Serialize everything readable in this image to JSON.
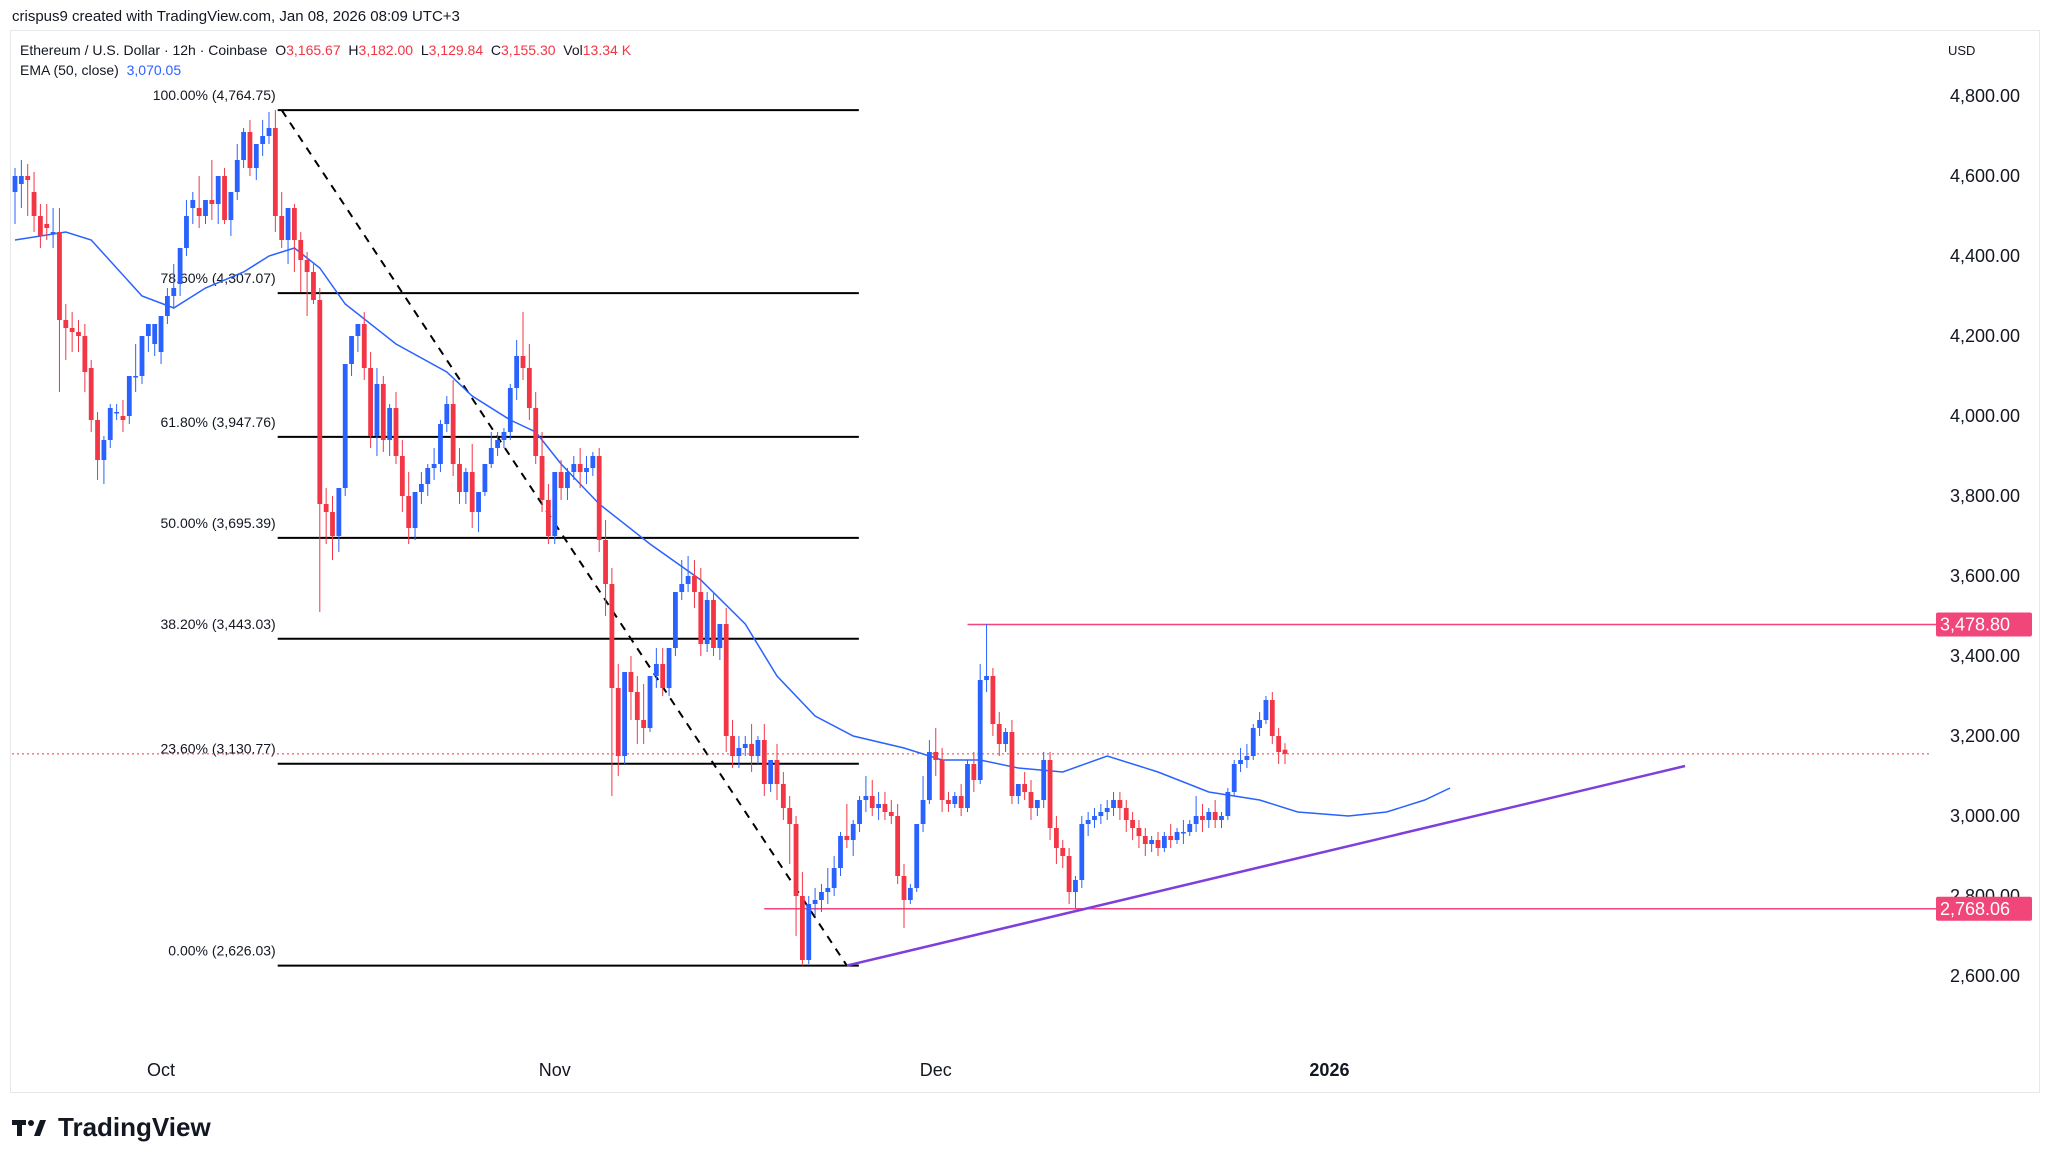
{
  "header": {
    "credit": "crispus9 created with TradingView.com, Jan 08, 2026 08:09 UTC+3",
    "symbol": "Ethereum / U.S. Dollar · 12h · Coinbase",
    "o_label": "O",
    "o_value": "3,165.67",
    "h_label": "H",
    "h_value": "3,182.00",
    "l_label": "L",
    "l_value": "3,129.84",
    "c_label": "C",
    "c_value": "3,155.30",
    "vol_label": "Vol",
    "vol_value": "13.34 K",
    "ema_label": "EMA (50, close)",
    "ema_value": "3,070.05",
    "currency": "USD"
  },
  "footer": {
    "brand": "TradingView"
  },
  "colors": {
    "up": "#2962ff",
    "down": "#f23645",
    "ema": "#2962ff",
    "trendline": "#7e3fdc",
    "level": "#f0467a",
    "fib": "#000000"
  },
  "chart_data": {
    "type": "candlestick",
    "title": "",
    "ylim": [
      2480,
      4900
    ],
    "y_ticks": [
      "2,600.00",
      "2,800.00",
      "3,000.00",
      "3,200.00",
      "3,400.00",
      "3,600.00",
      "3,800.00",
      "4,000.00",
      "4,200.00",
      "4,400.00",
      "4,600.00",
      "4,800.00"
    ],
    "y_tick_values": [
      2600,
      2800,
      3000,
      3200,
      3400,
      3600,
      3800,
      4000,
      4200,
      4400,
      4600,
      4800
    ],
    "x_ticks": [
      {
        "label": "Oct",
        "bar": 23,
        "bold": false
      },
      {
        "label": "Nov",
        "bar": 85,
        "bold": false
      },
      {
        "label": "Dec",
        "bar": 145,
        "bold": false
      },
      {
        "label": "2026",
        "bar": 207,
        "bold": true
      }
    ],
    "last_price": 3155.3,
    "fibonacci": {
      "start_bar": 42,
      "end_bar": 131,
      "high": 4764.75,
      "low": 2626.03,
      "levels": [
        {
          "label": "100.00% (4,764.75)",
          "value": 4764.75
        },
        {
          "label": "78.60% (4,307.07)",
          "value": 4307.07
        },
        {
          "label": "61.80% (3,947.76)",
          "value": 3947.76
        },
        {
          "label": "50.00% (3,695.39)",
          "value": 3695.39
        },
        {
          "label": "38.20% (3,443.03)",
          "value": 3443.03
        },
        {
          "label": "23.60% (3,130.77)",
          "value": 3130.77
        },
        {
          "label": "0.00% (2,626.03)",
          "value": 2626.03
        }
      ]
    },
    "horizontal_levels": [
      {
        "label": "3,478.80",
        "value": 3478.8,
        "from_bar": 150
      },
      {
        "label": "2,768.06",
        "value": 2768.06,
        "from_bar": 118
      }
    ],
    "trendline": {
      "bar1": 131,
      "value1": 2626.03,
      "bar2": 263,
      "value2": 3125
    },
    "ema_points": [
      [
        0,
        4440
      ],
      [
        8,
        4460
      ],
      [
        12,
        4440
      ],
      [
        20,
        4300
      ],
      [
        25,
        4270
      ],
      [
        30,
        4320
      ],
      [
        36,
        4360
      ],
      [
        40,
        4400
      ],
      [
        44,
        4420
      ],
      [
        48,
        4370
      ],
      [
        52,
        4280
      ],
      [
        60,
        4180
      ],
      [
        68,
        4110
      ],
      [
        72,
        4050
      ],
      [
        78,
        3990
      ],
      [
        82,
        3960
      ],
      [
        86,
        3880
      ],
      [
        92,
        3780
      ],
      [
        100,
        3680
      ],
      [
        108,
        3590
      ],
      [
        115,
        3480
      ],
      [
        120,
        3350
      ],
      [
        126,
        3250
      ],
      [
        132,
        3200
      ],
      [
        140,
        3170
      ],
      [
        146,
        3140
      ],
      [
        152,
        3140
      ],
      [
        158,
        3120
      ],
      [
        165,
        3110
      ],
      [
        172,
        3150
      ],
      [
        180,
        3110
      ],
      [
        188,
        3060
      ],
      [
        196,
        3040
      ],
      [
        202,
        3010
      ],
      [
        210,
        3000
      ],
      [
        216,
        3010
      ],
      [
        222,
        3040
      ],
      [
        226,
        3070
      ]
    ],
    "candles": [
      [
        4560,
        4620,
        4600,
        4480
      ],
      [
        4580,
        4640,
        4600,
        4520
      ],
      [
        4600,
        4630,
        4590,
        4500
      ],
      [
        4560,
        4610,
        4500,
        4460
      ],
      [
        4500,
        4530,
        4450,
        4420
      ],
      [
        4480,
        4530,
        4470,
        4440
      ],
      [
        4460,
        4520,
        4460,
        4420
      ],
      [
        4460,
        4520,
        4240,
        4060
      ],
      [
        4240,
        4280,
        4220,
        4140
      ],
      [
        4220,
        4260,
        4210,
        4160
      ],
      [
        4210,
        4240,
        4200,
        4160
      ],
      [
        4200,
        4230,
        4110,
        4060
      ],
      [
        4120,
        4140,
        3990,
        3960
      ],
      [
        3990,
        4010,
        3890,
        3840
      ],
      [
        3890,
        3950,
        3940,
        3830
      ],
      [
        3940,
        4030,
        4020,
        3920
      ],
      [
        4010,
        4030,
        4010,
        3990
      ],
      [
        4000,
        4040,
        3990,
        3960
      ],
      [
        4000,
        4080,
        4100,
        3980
      ],
      [
        4100,
        4180,
        4100,
        4060
      ],
      [
        4100,
        4120,
        4200,
        4080
      ],
      [
        4200,
        4220,
        4230,
        4160
      ],
      [
        4180,
        4220,
        4230,
        4150
      ],
      [
        4160,
        4200,
        4250,
        4130
      ],
      [
        4250,
        4320,
        4300,
        4230
      ],
      [
        4300,
        4380,
        4320,
        4270
      ],
      [
        4330,
        4400,
        4420,
        4300
      ],
      [
        4420,
        4540,
        4500,
        4400
      ],
      [
        4520,
        4560,
        4540,
        4480
      ],
      [
        4520,
        4600,
        4500,
        4470
      ],
      [
        4500,
        4540,
        4540,
        4480
      ],
      [
        4540,
        4640,
        4530,
        4490
      ],
      [
        4530,
        4600,
        4600,
        4480
      ],
      [
        4600,
        4620,
        4490,
        4480
      ],
      [
        4490,
        4560,
        4560,
        4450
      ],
      [
        4560,
        4680,
        4640,
        4540
      ],
      [
        4640,
        4720,
        4710,
        4620
      ],
      [
        4710,
        4740,
        4620,
        4600
      ],
      [
        4620,
        4680,
        4680,
        4590
      ],
      [
        4680,
        4740,
        4700,
        4650
      ],
      [
        4700,
        4760,
        4720,
        4680
      ],
      [
        4720,
        4765,
        4500,
        4460
      ],
      [
        4500,
        4560,
        4440,
        4420
      ],
      [
        4440,
        4520,
        4520,
        4380
      ],
      [
        4520,
        4530,
        4440,
        4360
      ],
      [
        4440,
        4460,
        4390,
        4310
      ],
      [
        4390,
        4410,
        4360,
        4250
      ],
      [
        4360,
        4380,
        4290,
        4280
      ],
      [
        4290,
        4320,
        3780,
        3510
      ],
      [
        3780,
        3820,
        3760,
        3680
      ],
      [
        3760,
        3800,
        3700,
        3640
      ],
      [
        3700,
        3800,
        3820,
        3660
      ],
      [
        3820,
        3980,
        4130,
        3800
      ],
      [
        4130,
        4180,
        4200,
        4100
      ],
      [
        4200,
        4220,
        4230,
        4160
      ],
      [
        4230,
        4260,
        4120,
        4090
      ],
      [
        4120,
        4160,
        3950,
        3920
      ],
      [
        3950,
        4120,
        4080,
        3900
      ],
      [
        4080,
        4100,
        3940,
        3910
      ],
      [
        3940,
        4030,
        4020,
        3900
      ],
      [
        4020,
        4060,
        3900,
        3880
      ],
      [
        3900,
        3940,
        3800,
        3760
      ],
      [
        3800,
        3860,
        3720,
        3680
      ],
      [
        3720,
        3800,
        3810,
        3690
      ],
      [
        3810,
        3860,
        3830,
        3780
      ],
      [
        3830,
        3880,
        3870,
        3800
      ],
      [
        3870,
        3920,
        3880,
        3840
      ],
      [
        3880,
        3990,
        3980,
        3860
      ],
      [
        3980,
        4050,
        4030,
        3960
      ],
      [
        4030,
        4090,
        3880,
        3850
      ],
      [
        3880,
        3920,
        3810,
        3780
      ],
      [
        3810,
        3870,
        3860,
        3780
      ],
      [
        3860,
        3930,
        3760,
        3720
      ],
      [
        3760,
        3810,
        3810,
        3710
      ],
      [
        3810,
        3880,
        3880,
        3800
      ],
      [
        3880,
        3960,
        3920,
        3870
      ],
      [
        3920,
        3960,
        3940,
        3900
      ],
      [
        3940,
        3970,
        3960,
        3920
      ],
      [
        3960,
        4080,
        4070,
        3940
      ],
      [
        4070,
        4190,
        4150,
        4040
      ],
      [
        4150,
        4260,
        4120,
        4090
      ],
      [
        4120,
        4180,
        4020,
        3990
      ],
      [
        4020,
        4060,
        3900,
        3880
      ],
      [
        3900,
        3960,
        3790,
        3760
      ],
      [
        3790,
        3830,
        3700,
        3680
      ],
      [
        3700,
        3760,
        3860,
        3680
      ],
      [
        3860,
        3890,
        3820,
        3790
      ],
      [
        3820,
        3870,
        3860,
        3790
      ],
      [
        3860,
        3900,
        3880,
        3840
      ],
      [
        3880,
        3920,
        3860,
        3820
      ],
      [
        3860,
        3900,
        3870,
        3830
      ],
      [
        3870,
        3910,
        3900,
        3850
      ],
      [
        3900,
        3920,
        3690,
        3660
      ],
      [
        3690,
        3740,
        3580,
        3500
      ],
      [
        3580,
        3620,
        3320,
        3050
      ],
      [
        3320,
        3380,
        3150,
        3100
      ],
      [
        3150,
        3200,
        3360,
        3130
      ],
      [
        3360,
        3400,
        3310,
        3240
      ],
      [
        3310,
        3350,
        3240,
        3180
      ],
      [
        3240,
        3330,
        3220,
        3180
      ],
      [
        3220,
        3280,
        3350,
        3210
      ],
      [
        3350,
        3420,
        3380,
        3320
      ],
      [
        3380,
        3420,
        3320,
        3300
      ],
      [
        3320,
        3420,
        3420,
        3300
      ],
      [
        3420,
        3560,
        3560,
        3400
      ],
      [
        3560,
        3640,
        3580,
        3540
      ],
      [
        3580,
        3650,
        3600,
        3560
      ],
      [
        3600,
        3640,
        3560,
        3520
      ],
      [
        3560,
        3620,
        3430,
        3400
      ],
      [
        3430,
        3560,
        3540,
        3410
      ],
      [
        3540,
        3560,
        3420,
        3400
      ],
      [
        3420,
        3480,
        3480,
        3390
      ],
      [
        3480,
        3520,
        3200,
        3160
      ],
      [
        3200,
        3240,
        3150,
        3120
      ],
      [
        3150,
        3200,
        3170,
        3120
      ],
      [
        3170,
        3200,
        3180,
        3150
      ],
      [
        3180,
        3230,
        3150,
        3110
      ],
      [
        3150,
        3200,
        3190,
        3130
      ],
      [
        3190,
        3230,
        3080,
        3050
      ],
      [
        3080,
        3120,
        3140,
        3060
      ],
      [
        3140,
        3180,
        3080,
        3040
      ],
      [
        3080,
        3110,
        3020,
        2990
      ],
      [
        3020,
        3050,
        2980,
        2880
      ],
      [
        2980,
        3000,
        2800,
        2700
      ],
      [
        2800,
        2860,
        2640,
        2626
      ],
      [
        2640,
        2800,
        2780,
        2630
      ],
      [
        2780,
        2820,
        2790,
        2750
      ],
      [
        2790,
        2830,
        2810,
        2760
      ],
      [
        2810,
        2870,
        2820,
        2780
      ],
      [
        2820,
        2900,
        2870,
        2800
      ],
      [
        2870,
        2960,
        2950,
        2850
      ],
      [
        2950,
        3030,
        2940,
        2920
      ],
      [
        2940,
        2990,
        2980,
        2900
      ],
      [
        2980,
        3050,
        3040,
        2960
      ],
      [
        3040,
        3100,
        3050,
        3010
      ],
      [
        3050,
        3090,
        3020,
        3000
      ],
      [
        3020,
        3060,
        3030,
        2990
      ],
      [
        3030,
        3060,
        3010,
        2990
      ],
      [
        3010,
        3040,
        3000,
        2980
      ],
      [
        3000,
        3030,
        2850,
        2830
      ],
      [
        2850,
        2880,
        2790,
        2720
      ],
      [
        2790,
        2830,
        2820,
        2780
      ],
      [
        2820,
        2900,
        2980,
        2810
      ],
      [
        2980,
        3100,
        3040,
        2960
      ],
      [
        3040,
        3190,
        3160,
        3030
      ],
      [
        3160,
        3220,
        3140,
        3100
      ],
      [
        3140,
        3170,
        3040,
        3010
      ],
      [
        3040,
        3060,
        3030,
        3010
      ],
      [
        3030,
        3060,
        3050,
        3020
      ],
      [
        3050,
        3080,
        3020,
        3000
      ],
      [
        3020,
        3140,
        3130,
        3010
      ],
      [
        3130,
        3160,
        3090,
        3060
      ],
      [
        3090,
        3380,
        3340,
        3080
      ],
      [
        3340,
        3480,
        3350,
        3310
      ],
      [
        3350,
        3370,
        3230,
        3200
      ],
      [
        3230,
        3260,
        3180,
        3150
      ],
      [
        3180,
        3220,
        3210,
        3160
      ],
      [
        3210,
        3240,
        3050,
        3030
      ],
      [
        3050,
        3080,
        3080,
        3030
      ],
      [
        3080,
        3110,
        3060,
        3040
      ],
      [
        3060,
        3090,
        3020,
        2990
      ],
      [
        3020,
        3040,
        3040,
        3000
      ],
      [
        3040,
        3160,
        3140,
        3020
      ],
      [
        3140,
        3160,
        2970,
        2940
      ],
      [
        2970,
        3000,
        2920,
        2880
      ],
      [
        2920,
        2940,
        2900,
        2870
      ],
      [
        2900,
        2920,
        2810,
        2780
      ],
      [
        2810,
        2850,
        2840,
        2770
      ],
      [
        2840,
        3000,
        2980,
        2820
      ],
      [
        2980,
        3010,
        2990,
        2950
      ],
      [
        2990,
        3020,
        3000,
        2970
      ],
      [
        3000,
        3030,
        3010,
        2980
      ],
      [
        3010,
        3040,
        3020,
        2990
      ],
      [
        3020,
        3060,
        3040,
        3000
      ],
      [
        3040,
        3060,
        3020,
        2990
      ],
      [
        3020,
        3040,
        2990,
        2960
      ],
      [
        2990,
        3010,
        2970,
        2940
      ],
      [
        2970,
        2990,
        2950,
        2920
      ],
      [
        2950,
        2970,
        2930,
        2900
      ],
      [
        2930,
        2950,
        2940,
        2910
      ],
      [
        2940,
        2960,
        2920,
        2900
      ],
      [
        2920,
        2960,
        2950,
        2910
      ],
      [
        2950,
        2980,
        2940,
        2920
      ],
      [
        2940,
        2970,
        2960,
        2930
      ],
      [
        2960,
        2990,
        2960,
        2930
      ],
      [
        2960,
        2990,
        2980,
        2950
      ],
      [
        2980,
        3050,
        3000,
        2960
      ],
      [
        3000,
        3030,
        2990,
        2960
      ],
      [
        2990,
        3020,
        3010,
        2970
      ],
      [
        3010,
        3040,
        2990,
        2970
      ],
      [
        2990,
        3010,
        3000,
        2970
      ],
      [
        3000,
        3070,
        3060,
        2990
      ],
      [
        3060,
        3140,
        3130,
        3050
      ],
      [
        3130,
        3170,
        3140,
        3110
      ],
      [
        3140,
        3180,
        3150,
        3120
      ],
      [
        3150,
        3230,
        3220,
        3140
      ],
      [
        3220,
        3260,
        3240,
        3200
      ],
      [
        3240,
        3300,
        3290,
        3230
      ],
      [
        3290,
        3310,
        3200,
        3180
      ],
      [
        3200,
        3220,
        3160,
        3130
      ],
      [
        3165.67,
        3182.0,
        3155.3,
        3129.84
      ]
    ]
  }
}
